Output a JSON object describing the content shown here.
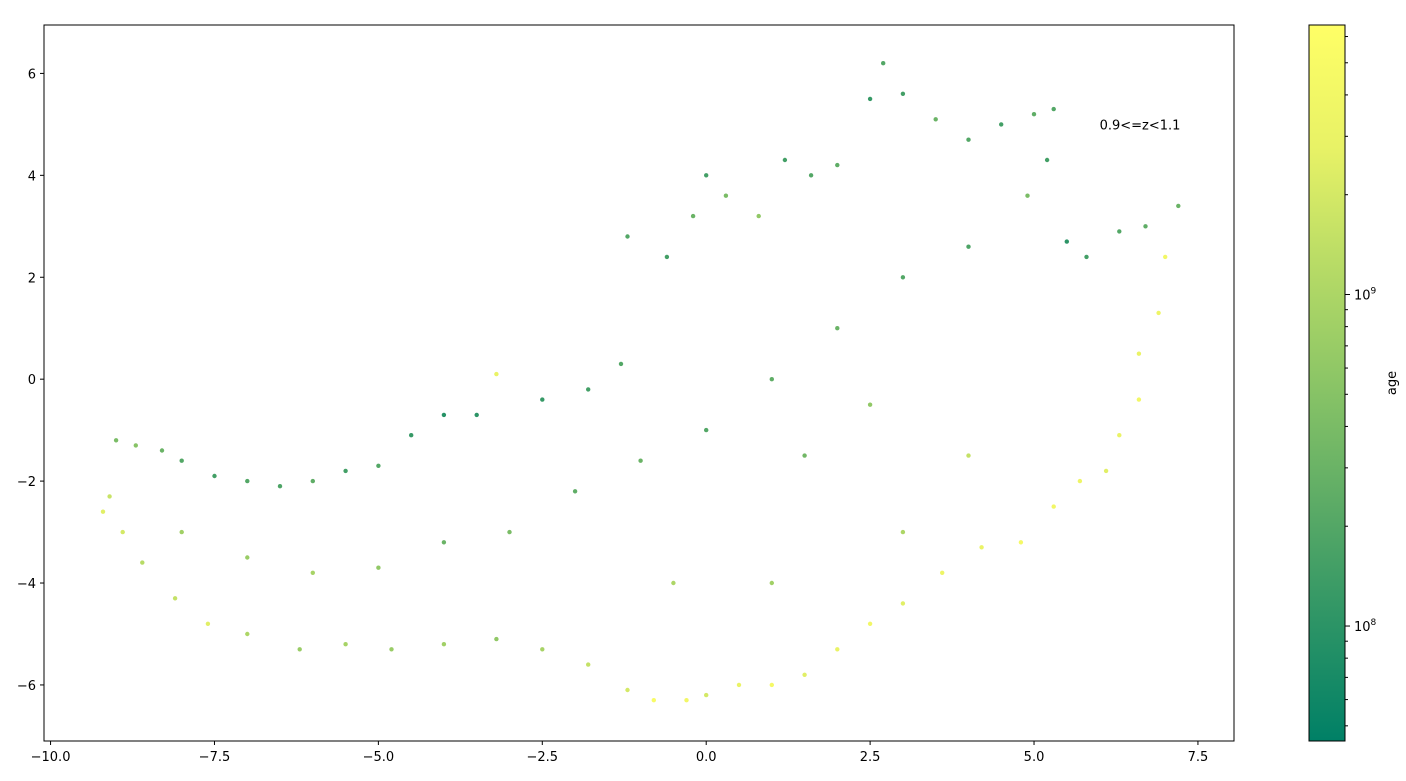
{
  "chart_data": {
    "type": "scatter",
    "title": "",
    "xlabel": "",
    "ylabel": "",
    "xlim": [
      -10.1,
      8.05
    ],
    "ylim": [
      -7.1,
      6.95
    ],
    "xticks": [
      -10.0,
      -7.5,
      -5.0,
      -2.5,
      0.0,
      2.5,
      5.0,
      7.5
    ],
    "xtick_labels": [
      "−10.0",
      "−7.5",
      "−5.0",
      "−2.5",
      "0.0",
      "2.5",
      "5.0",
      "7.5"
    ],
    "yticks": [
      -6,
      -4,
      -2,
      0,
      2,
      4,
      6
    ],
    "ytick_labels": [
      "−6",
      "−4",
      "−2",
      "0",
      "2",
      "4",
      "6"
    ],
    "annotation": {
      "text": "0.9<=z<1.1",
      "x": 6.0,
      "y": 5.0
    },
    "grid": false,
    "colormap": [
      "#008066",
      "#2e9566",
      "#5cab66",
      "#8bc566",
      "#b9dc66",
      "#e8f266",
      "#ffff66"
    ],
    "colorbar": {
      "label": "age",
      "scale": "log",
      "range": [
        45000000,
        6500000000
      ],
      "major_ticks": [
        100000000,
        1000000000
      ],
      "major_tick_labels": [
        "10^8",
        "10^9"
      ],
      "minor_ticks": [
        50000000,
        60000000,
        70000000,
        80000000,
        90000000,
        200000000,
        300000000,
        400000000,
        500000000,
        600000000,
        700000000,
        800000000,
        900000000,
        2000000000,
        3000000000,
        4000000000,
        5000000000,
        6000000000
      ]
    },
    "series": [
      {
        "points": [
          [
            -9.1,
            -2.3,
            1600000000.0
          ],
          [
            -9.0,
            -1.2,
            400000000.0
          ],
          [
            -8.7,
            -1.3,
            500000000.0
          ],
          [
            -8.3,
            -1.4,
            300000000.0
          ],
          [
            -8.0,
            -1.6,
            200000000.0
          ],
          [
            -7.5,
            -1.9,
            150000000.0
          ],
          [
            -7.0,
            -2.0,
            200000000.0
          ],
          [
            -6.5,
            -2.1,
            180000000.0
          ],
          [
            -6.0,
            -2.0,
            250000000.0
          ],
          [
            -5.5,
            -1.8,
            150000000.0
          ],
          [
            -5.0,
            -1.7,
            200000000.0
          ],
          [
            -4.5,
            -1.1,
            120000000.0
          ],
          [
            -4.0,
            -0.7,
            90000000.0
          ],
          [
            -3.5,
            -0.7,
            100000000.0
          ],
          [
            -3.2,
            0.1,
            3000000000.0
          ],
          [
            -2.5,
            -0.4,
            120000000.0
          ],
          [
            -1.8,
            -0.2,
            150000000.0
          ],
          [
            -1.3,
            0.3,
            200000000.0
          ],
          [
            -1.2,
            2.8,
            200000000.0
          ],
          [
            -0.6,
            2.4,
            150000000.0
          ],
          [
            -0.2,
            3.2,
            300000000.0
          ],
          [
            0.0,
            4.0,
            150000000.0
          ],
          [
            0.3,
            3.6,
            400000000.0
          ],
          [
            0.8,
            3.2,
            600000000.0
          ],
          [
            1.2,
            4.3,
            150000000.0
          ],
          [
            1.6,
            4.0,
            200000000.0
          ],
          [
            2.0,
            4.2,
            250000000.0
          ],
          [
            2.5,
            5.5,
            120000000.0
          ],
          [
            2.7,
            6.2,
            200000000.0
          ],
          [
            3.0,
            5.6,
            150000000.0
          ],
          [
            3.5,
            5.1,
            300000000.0
          ],
          [
            4.0,
            4.7,
            200000000.0
          ],
          [
            4.5,
            5.0,
            150000000.0
          ],
          [
            5.0,
            5.2,
            250000000.0
          ],
          [
            5.3,
            5.3,
            200000000.0
          ],
          [
            5.2,
            4.3,
            150000000.0
          ],
          [
            4.9,
            3.6,
            400000000.0
          ],
          [
            5.5,
            2.7,
            100000000.0
          ],
          [
            5.8,
            2.4,
            150000000.0
          ],
          [
            6.3,
            2.9,
            200000000.0
          ],
          [
            6.7,
            3.0,
            250000000.0
          ],
          [
            7.2,
            3.4,
            300000000.0
          ],
          [
            7.0,
            2.4,
            4000000000.0
          ],
          [
            6.9,
            1.3,
            3500000000.0
          ],
          [
            6.6,
            0.5,
            3000000000.0
          ],
          [
            6.6,
            -0.4,
            4000000000.0
          ],
          [
            6.3,
            -1.1,
            3000000000.0
          ],
          [
            6.1,
            -1.8,
            2500000000.0
          ],
          [
            5.7,
            -2.0,
            3500000000.0
          ],
          [
            5.3,
            -2.5,
            4000000000.0
          ],
          [
            4.8,
            -3.2,
            4500000000.0
          ],
          [
            4.2,
            -3.3,
            3000000000.0
          ],
          [
            3.6,
            -3.8,
            3500000000.0
          ],
          [
            3.0,
            -4.4,
            2500000000.0
          ],
          [
            2.5,
            -4.8,
            4000000000.0
          ],
          [
            2.0,
            -5.3,
            3000000000.0
          ],
          [
            1.5,
            -5.8,
            2500000000.0
          ],
          [
            1.0,
            -6.0,
            4500000000.0
          ],
          [
            0.5,
            -6.0,
            3000000000.0
          ],
          [
            0.0,
            -6.2,
            2000000000.0
          ],
          [
            -0.3,
            -6.3,
            4000000000.0
          ],
          [
            -0.8,
            -6.3,
            5000000000.0
          ],
          [
            -1.2,
            -6.1,
            2000000000.0
          ],
          [
            -1.8,
            -5.6,
            1500000000.0
          ],
          [
            -2.5,
            -5.3,
            900000000.0
          ],
          [
            -3.2,
            -5.1,
            600000000.0
          ],
          [
            -4.0,
            -5.2,
            800000000.0
          ],
          [
            -4.8,
            -5.3,
            700000000.0
          ],
          [
            -5.5,
            -5.2,
            900000000.0
          ],
          [
            -6.2,
            -5.3,
            700000000.0
          ],
          [
            -7.0,
            -5.0,
            1000000000.0
          ],
          [
            -7.6,
            -4.8,
            2500000000.0
          ],
          [
            -8.1,
            -4.3,
            1500000000.0
          ],
          [
            -8.6,
            -3.6,
            1200000000.0
          ],
          [
            -8.9,
            -3.0,
            2000000000.0
          ],
          [
            -9.2,
            -2.6,
            2500000000.0
          ],
          [
            -8.0,
            -3.0,
            800000000.0
          ],
          [
            -7.0,
            -3.5,
            700000000.0
          ],
          [
            -6.0,
            -3.8,
            900000000.0
          ],
          [
            -5.0,
            -3.7,
            600000000.0
          ],
          [
            -4.0,
            -3.2,
            300000000.0
          ],
          [
            -3.0,
            -3.0,
            400000000.0
          ],
          [
            -2.0,
            -2.2,
            250000000.0
          ],
          [
            -1.0,
            -1.6,
            300000000.0
          ],
          [
            0.0,
            -1.0,
            200000000.0
          ],
          [
            1.0,
            0.0,
            250000000.0
          ],
          [
            2.0,
            1.0,
            300000000.0
          ],
          [
            3.0,
            2.0,
            200000000.0
          ],
          [
            4.0,
            2.6,
            180000000.0
          ],
          [
            1.5,
            -1.5,
            350000000.0
          ],
          [
            2.5,
            -0.5,
            600000000.0
          ],
          [
            4.0,
            -1.5,
            1500000000.0
          ],
          [
            3.0,
            -3.0,
            1000000000.0
          ],
          [
            1.0,
            -4.0,
            800000000.0
          ],
          [
            -0.5,
            -4.0,
            1000000000.0
          ]
        ]
      }
    ]
  }
}
